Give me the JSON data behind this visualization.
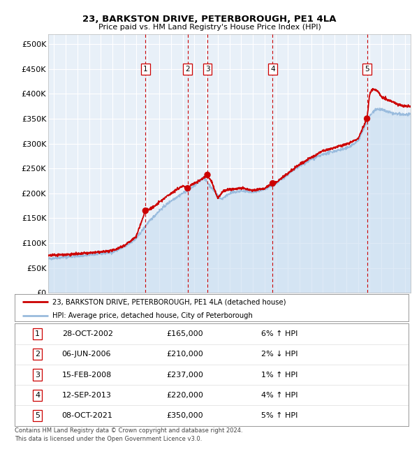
{
  "title": "23, BARKSTON DRIVE, PETERBOROUGH, PE1 4LA",
  "subtitle": "Price paid vs. HM Land Registry's House Price Index (HPI)",
  "background_color": "#ffffff",
  "plot_bg_color": "#e8f0f8",
  "grid_color": "#ffffff",
  "hpi_line_color": "#99bbdd",
  "hpi_fill_color": "#c8ddf0",
  "price_line_color": "#cc0000",
  "sale_marker_color": "#cc0000",
  "vline_color": "#cc0000",
  "yticks": [
    0,
    50000,
    100000,
    150000,
    200000,
    250000,
    300000,
    350000,
    400000,
    450000,
    500000
  ],
  "ytick_labels": [
    "£0",
    "£50K",
    "£100K",
    "£150K",
    "£200K",
    "£250K",
    "£300K",
    "£350K",
    "£400K",
    "£450K",
    "£500K"
  ],
  "xmin": 1994.5,
  "xmax": 2025.5,
  "ymin": 0,
  "ymax": 520000,
  "sales": [
    {
      "num": 1,
      "date_label": "28-OCT-2002",
      "year": 2002.82,
      "price": 165000,
      "hpi_pct": "6%",
      "hpi_dir": "↑"
    },
    {
      "num": 2,
      "date_label": "06-JUN-2006",
      "year": 2006.43,
      "price": 210000,
      "hpi_pct": "2%",
      "hpi_dir": "↓"
    },
    {
      "num": 3,
      "date_label": "15-FEB-2008",
      "year": 2008.12,
      "price": 237000,
      "hpi_pct": "1%",
      "hpi_dir": "↑"
    },
    {
      "num": 4,
      "date_label": "12-SEP-2013",
      "year": 2013.7,
      "price": 220000,
      "hpi_pct": "4%",
      "hpi_dir": "↑"
    },
    {
      "num": 5,
      "date_label": "08-OCT-2021",
      "year": 2021.77,
      "price": 350000,
      "hpi_pct": "5%",
      "hpi_dir": "↑"
    }
  ],
  "legend_line1": "23, BARKSTON DRIVE, PETERBOROUGH, PE1 4LA (detached house)",
  "legend_line2": "HPI: Average price, detached house, City of Peterborough",
  "footer1": "Contains HM Land Registry data © Crown copyright and database right 2024.",
  "footer2": "This data is licensed under the Open Government Licence v3.0.",
  "table_rows": [
    [
      "1",
      "28-OCT-2002",
      "£165,000",
      "6% ↑ HPI"
    ],
    [
      "2",
      "06-JUN-2006",
      "£210,000",
      "2% ↓ HPI"
    ],
    [
      "3",
      "15-FEB-2008",
      "£237,000",
      "1% ↑ HPI"
    ],
    [
      "4",
      "12-SEP-2013",
      "£220,000",
      "4% ↑ HPI"
    ],
    [
      "5",
      "08-OCT-2021",
      "£350,000",
      "5% ↑ HPI"
    ]
  ]
}
